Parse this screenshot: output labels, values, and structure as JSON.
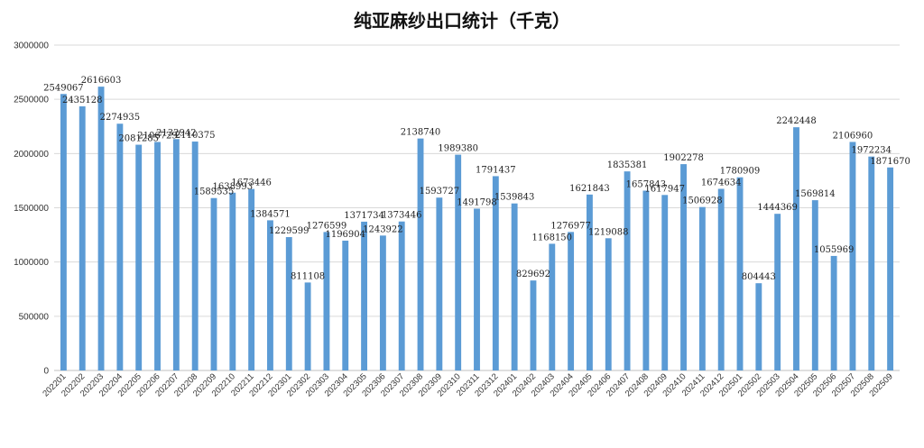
{
  "chart_data": {
    "type": "bar",
    "title": "纯亚麻纱出口统计（千克）",
    "xlabel": "",
    "ylabel": "",
    "ylim": [
      0,
      3000000
    ],
    "yticks": [
      0,
      500000,
      1000000,
      1500000,
      2000000,
      2500000,
      3000000
    ],
    "grid": true,
    "legend": "none",
    "bar_color": "#5B9BD5",
    "categories": [
      "202201",
      "202202",
      "202203",
      "202204",
      "202205",
      "202206",
      "202207",
      "202208",
      "202209",
      "202210",
      "202211",
      "202212",
      "202301",
      "202302",
      "202303",
      "202304",
      "202305",
      "202306",
      "202307",
      "202308",
      "202309",
      "202310",
      "202311",
      "202312",
      "202401",
      "202402",
      "202403",
      "202404",
      "202405",
      "202406",
      "202407",
      "202408",
      "202409",
      "202410",
      "202411",
      "202412",
      "202501",
      "202502",
      "202503",
      "202504",
      "202505",
      "202506",
      "202507",
      "202508",
      "202509"
    ],
    "values": [
      2549067,
      2435128,
      2616603,
      2274935,
      2081285,
      2106729,
      2132942,
      2110375,
      1589535,
      1638993,
      1673446,
      1384571,
      1229599,
      811108,
      1276599,
      1196904,
      1371734,
      1243922,
      1373446,
      2138740,
      1593727,
      1989380,
      1491798,
      1791437,
      1539843,
      829692,
      1168150,
      1276977,
      1621843,
      1219088,
      1835381,
      1657843,
      1617947,
      1902278,
      1506928,
      1674634,
      1780909,
      804443,
      1444369,
      2242448,
      1569814,
      1055969,
      2106960,
      1972234,
      1871670
    ]
  }
}
